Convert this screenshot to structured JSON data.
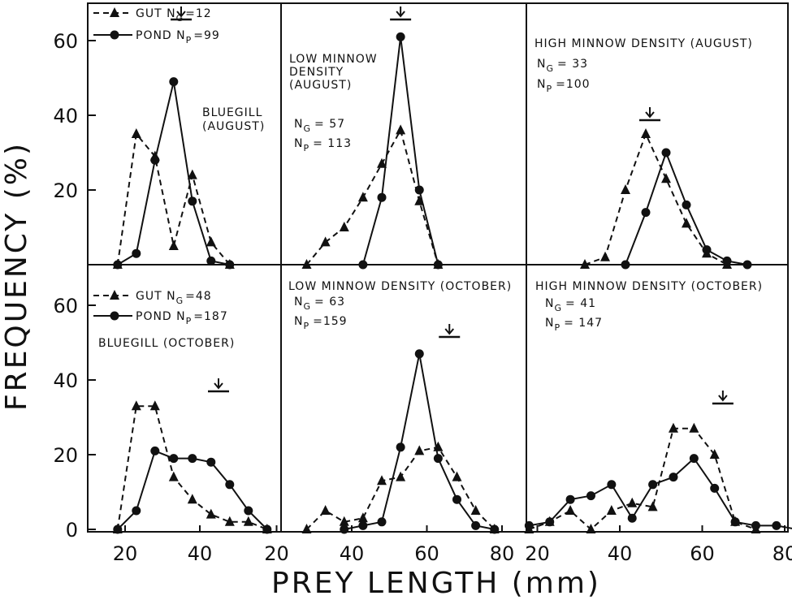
{
  "figure": {
    "ylabel": "FREQUENCY (%)",
    "xlabel": "PREY LENGTH (mm)"
  },
  "chart_data": [
    {
      "type": "line",
      "panel": "top-left",
      "annotation_lines": [
        "BLUEGILL",
        "(AUGUST)"
      ],
      "legend": {
        "gut": "GUT N",
        "gut_sub": "G",
        "gut_n": "=12",
        "pond": "POND N",
        "pond_sub": "P",
        "pond_n": "=99"
      },
      "arrow_x": 35,
      "xlim": [
        12,
        92
      ],
      "ylim": [
        0,
        70
      ],
      "yticks": [
        20,
        40,
        60
      ],
      "series": [
        {
          "name": "GUT",
          "style": "dashed",
          "marker": "triangle",
          "x": [
            18,
            23,
            28,
            33,
            38,
            43,
            48
          ],
          "y": [
            0,
            35,
            29,
            5,
            24,
            6,
            0
          ]
        },
        {
          "name": "POND",
          "style": "solid",
          "marker": "circle",
          "x": [
            18,
            23,
            28,
            33,
            38,
            43,
            48
          ],
          "y": [
            0,
            3,
            28,
            49,
            17,
            1,
            0
          ]
        }
      ]
    },
    {
      "type": "line",
      "panel": "top-middle",
      "annotation_lines": [
        "LOW MINNOW",
        "DENSITY",
        "(AUGUST)"
      ],
      "counts": {
        "ng": "N",
        "ng_sub": "G",
        "ng_val": "= 57",
        "np": "N",
        "np_sub": "P",
        "np_val": "= 113"
      },
      "arrow_x": 53,
      "xlim": [
        20,
        81
      ],
      "ylim": [
        0,
        70
      ],
      "series": [
        {
          "name": "GUT",
          "style": "dashed",
          "marker": "triangle",
          "x": [
            28,
            33,
            38,
            43,
            48,
            53,
            58,
            63
          ],
          "y": [
            0,
            6,
            10,
            18,
            27,
            36,
            17,
            0
          ]
        },
        {
          "name": "POND",
          "style": "solid",
          "marker": "circle",
          "x": [
            43,
            48,
            53,
            58,
            63
          ],
          "y": [
            0,
            18,
            61,
            20,
            0
          ]
        }
      ]
    },
    {
      "type": "line",
      "panel": "top-right",
      "annotation_lines": [
        "HIGH MINNOW DENSITY (AUGUST)"
      ],
      "counts": {
        "ng": "N",
        "ng_sub": "G",
        "ng_val": "= 33",
        "np": "N",
        "np_sub": "P",
        "np_val": "=100"
      },
      "arrow_x": 49,
      "xlim": [
        12,
        85
      ],
      "ylim": [
        0,
        70
      ],
      "series": [
        {
          "name": "GUT",
          "style": "dashed",
          "marker": "triangle",
          "x": [
            33,
            38,
            43,
            48,
            53,
            58,
            63,
            68
          ],
          "y": [
            0,
            2,
            20,
            35,
            23,
            11,
            3,
            0
          ]
        },
        {
          "name": "POND",
          "style": "solid",
          "marker": "circle",
          "x": [
            43,
            48,
            53,
            58,
            63,
            68,
            73
          ],
          "y": [
            0,
            14,
            30,
            16,
            4,
            1,
            0
          ]
        }
      ]
    },
    {
      "type": "line",
      "panel": "bottom-left",
      "annotation_lines": [
        "BLUEGILL (OCTOBER)"
      ],
      "legend": {
        "gut": "GUT N",
        "gut_sub": "G",
        "gut_n": "=48",
        "pond": "POND N",
        "pond_sub": "P",
        "pond_n": "=187"
      },
      "arrow_x": 45,
      "xlim": [
        12,
        92
      ],
      "ylim": [
        0,
        70
      ],
      "yticks": [
        0,
        20,
        40,
        60
      ],
      "xticks": [
        20,
        40
      ],
      "series": [
        {
          "name": "GUT",
          "style": "dashed",
          "marker": "triangle",
          "x": [
            18,
            23,
            28,
            33,
            38,
            43,
            48,
            53,
            58
          ],
          "y": [
            0,
            33,
            33,
            14,
            8,
            4,
            2,
            2,
            0
          ]
        },
        {
          "name": "POND",
          "style": "solid",
          "marker": "circle",
          "x": [
            18,
            23,
            28,
            33,
            38,
            43,
            48,
            53,
            58
          ],
          "y": [
            0,
            5,
            21,
            19,
            19,
            18,
            12,
            5,
            0
          ]
        }
      ]
    },
    {
      "type": "line",
      "panel": "bottom-middle",
      "annotation_lines": [
        "LOW MINNOW DENSITY (OCTOBER)"
      ],
      "counts": {
        "ng": "N",
        "ng_sub": "G",
        "ng_val": "= 63",
        "np": "N",
        "np_sub": "P",
        "np_val": "=159"
      },
      "arrow_x": 66,
      "xlim": [
        20,
        81
      ],
      "ylim": [
        0,
        70
      ],
      "xticks": [
        20,
        40,
        60,
        80
      ],
      "series": [
        {
          "name": "GUT",
          "style": "dashed",
          "marker": "triangle",
          "x": [
            28,
            33,
            38,
            43,
            48,
            53,
            58,
            63,
            68,
            73,
            78
          ],
          "y": [
            0,
            5,
            2,
            3,
            13,
            14,
            21,
            22,
            14,
            5,
            0
          ]
        },
        {
          "name": "POND",
          "style": "solid",
          "marker": "circle",
          "x": [
            38,
            43,
            48,
            53,
            58,
            63,
            68,
            73,
            78
          ],
          "y": [
            0,
            1,
            2,
            22,
            47,
            19,
            8,
            1,
            0
          ]
        }
      ]
    },
    {
      "type": "line",
      "panel": "bottom-right",
      "annotation_lines": [
        "HIGH MINNOW DENSITY (OCTOBER)"
      ],
      "counts": {
        "ng": "N",
        "ng_sub": "G",
        "ng_val": "= 41",
        "np": "N",
        "np_sub": "P",
        "np_val": "= 147"
      },
      "arrow_x": 65,
      "xlim": [
        17,
        86
      ],
      "ylim": [
        0,
        70
      ],
      "xticks": [
        20,
        40,
        60,
        80
      ],
      "series": [
        {
          "name": "GUT",
          "style": "dashed",
          "marker": "triangle",
          "x": [
            18,
            23,
            28,
            33,
            38,
            43,
            48,
            53,
            58,
            63,
            68,
            73
          ],
          "y": [
            0,
            2,
            5,
            0,
            5,
            7,
            6,
            27,
            27,
            20,
            2,
            0
          ]
        },
        {
          "name": "POND",
          "style": "solid",
          "marker": "circle",
          "x": [
            18,
            23,
            28,
            33,
            38,
            43,
            48,
            53,
            58,
            63,
            68,
            73,
            78,
            83
          ],
          "y": [
            1,
            2,
            8,
            9,
            12,
            3,
            12,
            14,
            19,
            11,
            2,
            1,
            1,
            0
          ]
        }
      ]
    }
  ]
}
